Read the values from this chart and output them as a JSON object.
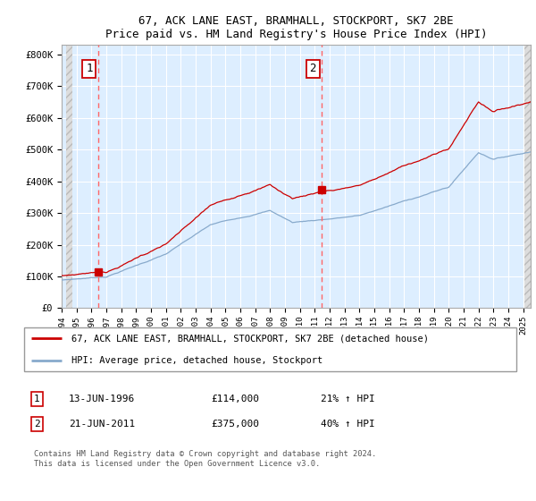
{
  "title1": "67, ACK LANE EAST, BRAMHALL, STOCKPORT, SK7 2BE",
  "title2": "Price paid vs. HM Land Registry's House Price Index (HPI)",
  "ylabel_ticks": [
    "£0",
    "£100K",
    "£200K",
    "£300K",
    "£400K",
    "£500K",
    "£600K",
    "£700K",
    "£800K"
  ],
  "ytick_vals": [
    0,
    100000,
    200000,
    300000,
    400000,
    500000,
    600000,
    700000,
    800000
  ],
  "ylim": [
    0,
    830000
  ],
  "xlim_start": 1994.3,
  "xlim_end": 2025.5,
  "background_color": "#ffffff",
  "plot_bg_color": "#ddeeff",
  "grid_color": "#ffffff",
  "sale1_year": 1996.45,
  "sale1_price": 114000,
  "sale2_year": 2011.47,
  "sale2_price": 375000,
  "annotation1": "1",
  "annotation2": "2",
  "legend_line1": "67, ACK LANE EAST, BRAMHALL, STOCKPORT, SK7 2BE (detached house)",
  "legend_line2": "HPI: Average price, detached house, Stockport",
  "table_row1": [
    "1",
    "13-JUN-1996",
    "£114,000",
    "21% ↑ HPI"
  ],
  "table_row2": [
    "2",
    "21-JUN-2011",
    "£375,000",
    "40% ↑ HPI"
  ],
  "footnote": "Contains HM Land Registry data © Crown copyright and database right 2024.\nThis data is licensed under the Open Government Licence v3.0.",
  "red_line_color": "#cc0000",
  "blue_line_color": "#88aacc",
  "dashed_line_color": "#ff6666"
}
